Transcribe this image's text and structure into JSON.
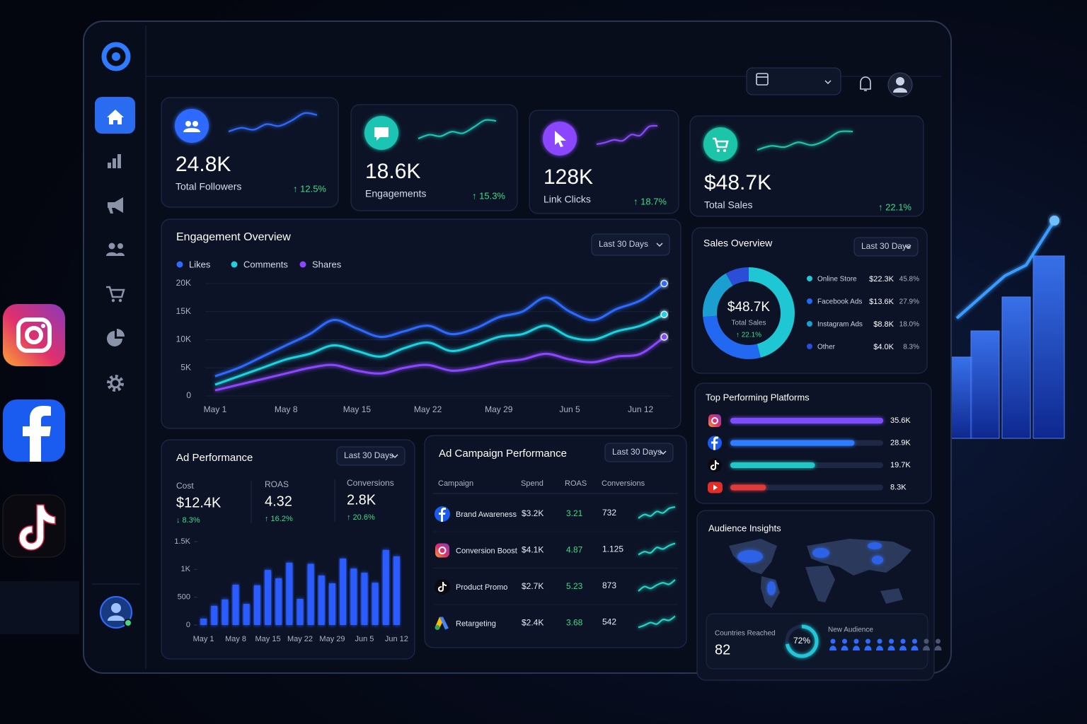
{
  "kpis": [
    {
      "value": "24.8K",
      "label": "Total Followers",
      "change": "↑ 12.5%",
      "color": "#2f6bff",
      "trend": [
        2,
        3,
        2.5,
        4,
        3.5,
        5,
        7,
        6.5
      ]
    },
    {
      "value": "18.6K",
      "label": "Engagements",
      "change": "↑ 15.3%",
      "color": "#1cc4b4",
      "trend": [
        2,
        3,
        2.6,
        3.8,
        3.4,
        5,
        6.8,
        6.6
      ]
    },
    {
      "value": "128K",
      "label": "Link Clicks",
      "change": "↑ 18.7%",
      "color": "#8a46ff",
      "trend": [
        2,
        2.4,
        3,
        2.8,
        4.2,
        4,
        6,
        6.2
      ]
    },
    {
      "value": "$48.7K",
      "label": "Total Sales",
      "change": "↑ 22.1%",
      "color": "#1cc4a8",
      "trend": [
        2,
        3,
        2.7,
        3.9,
        3.2,
        4.4,
        6.5,
        6.6
      ]
    }
  ],
  "engagement": {
    "filter": "Last 30 Days",
    "chart_data": {
      "type": "line",
      "title": "Engagement Overview",
      "categories": [
        "May 1",
        null,
        null,
        "May 8",
        null,
        null,
        "May 15",
        null,
        null,
        "May 22",
        null,
        null,
        "May 29",
        null,
        null,
        "Jun 5",
        null,
        null,
        "Jun 12",
        null
      ],
      "series": [
        {
          "name": "Likes",
          "color": "#2f6bff",
          "values": [
            3.5,
            5,
            7,
            9,
            11,
            13.5,
            12,
            10.5,
            11.5,
            12.5,
            11,
            12,
            14,
            15,
            17.5,
            15,
            13.5,
            15.5,
            17,
            20
          ]
        },
        {
          "name": "Comments",
          "color": "#1fd1e0",
          "values": [
            2,
            3.5,
            5,
            6.5,
            7.5,
            9,
            8,
            7,
            8.5,
            9.5,
            8,
            9,
            10.5,
            11,
            12.5,
            10.5,
            10,
            11.5,
            12.5,
            14.5
          ]
        },
        {
          "name": "Shares",
          "color": "#8b46ff",
          "values": [
            1,
            2,
            3,
            4,
            5,
            5.5,
            4.5,
            4,
            5,
            5.5,
            4.5,
            5,
            6,
            6.5,
            7.5,
            6.5,
            6,
            7,
            7.5,
            10.5
          ]
        }
      ],
      "ylim": [
        0,
        20
      ],
      "yticks": [
        0,
        {
          "value": 5,
          "label": "5K"
        },
        {
          "value": 10,
          "label": "10K"
        },
        {
          "value": 15,
          "label": "15K"
        },
        {
          "value": 20,
          "label": "20K"
        }
      ],
      "grid": true
    }
  },
  "sales": {
    "filter": "Last 30 Days",
    "chart_data": {
      "type": "donut",
      "title": "Sales Overview",
      "center_value": "$48.7K",
      "center_label": "Total Sales",
      "center_change": "↑ 22.1%",
      "categories": [
        "Online Store",
        "Facebook Ads",
        "Instagram Ads",
        "Other"
      ],
      "values": [
        45.8,
        27.9,
        18.0,
        8.3
      ],
      "value_labels": [
        "45.8%",
        "27.9%",
        "18.0%",
        "8.3%"
      ],
      "amounts": [
        "$22.3K",
        "$13.6K",
        "$8.8K",
        "$4.0K"
      ],
      "colors": [
        "#1fc6d3",
        "#2368f0",
        "#1a9fd0",
        "#2a4fd6"
      ]
    }
  },
  "platforms": {
    "chart_data": {
      "type": "bar",
      "orientation": "horizontal",
      "title": "Top Performing Platforms",
      "values": [
        35.6,
        28.9,
        19.7,
        8.3
      ],
      "value_labels": [
        "35.6K",
        "28.9K",
        "19.7K",
        "8.3K"
      ],
      "colors": [
        "#7b4dff",
        "#2f7bff",
        "#22c6c6",
        "#e03a3a"
      ]
    }
  },
  "ad_performance": {
    "filter": "Last 30 Days",
    "stats": [
      {
        "label": "Cost",
        "value": "$12.4K",
        "change": "↓ 8.3%",
        "direction": "down"
      },
      {
        "label": "ROAS",
        "value": "4.32",
        "change": "↑ 16.2%",
        "direction": "up"
      },
      {
        "label": "Conversions",
        "value": "2.8K",
        "change": "↑ 20.6%",
        "direction": "up"
      }
    ],
    "chart_data": {
      "type": "bar",
      "title": "Ad Performance",
      "categories": [
        "May 1",
        null,
        null,
        "May 8",
        null,
        null,
        "May 15",
        null,
        null,
        "May 22",
        null,
        null,
        "May 29",
        null,
        null,
        "Jun 5",
        null,
        null,
        "Jun 12"
      ],
      "values": [
        115,
        345,
        460,
        725,
        380,
        715,
        990,
        840,
        1120,
        470,
        1100,
        890,
        750,
        1195,
        1015,
        940,
        760,
        1350,
        1235
      ],
      "color": "#2a5cff",
      "ylim": [
        0,
        1500
      ],
      "yticks": [
        0,
        500,
        {
          "value": 1000,
          "label": "1K"
        },
        {
          "value": 1500,
          "label": "1.5K"
        }
      ]
    }
  },
  "ad_campaigns": {
    "title": "Ad Campaign Performance",
    "filter": "Last 30 Days",
    "columns": [
      "Campaign",
      "Spend",
      "ROAS",
      "Conversions"
    ],
    "rows": [
      {
        "cells": [
          "Brand Awareness",
          "$3.2K",
          "3.21",
          "732"
        ],
        "trend": [
          1,
          2,
          1.6,
          2.8,
          2.4,
          3.6,
          4
        ]
      },
      {
        "cells": [
          "Conversion Boost",
          "$4.1K",
          "4.87",
          "1.125"
        ],
        "trend": [
          1,
          1.8,
          1.5,
          2.9,
          2.5,
          3.4,
          4
        ]
      },
      {
        "cells": [
          "Product Promo",
          "$2.7K",
          "5.23",
          "873"
        ],
        "trend": [
          1,
          2.2,
          1.7,
          2.6,
          3.2,
          2.8,
          4
        ]
      },
      {
        "cells": [
          "Retargeting",
          "$2.4K",
          "3.68",
          "542"
        ],
        "trend": [
          1,
          1.6,
          2.3,
          1.9,
          3.1,
          2.9,
          4
        ]
      }
    ]
  },
  "audience": {
    "title": "Audience Insights",
    "countries_label": "Countries Reached",
    "countries_value": "82",
    "new_audience_label": "New Audience",
    "new_audience_share": {
      "value": 72,
      "label": "72%"
    }
  }
}
